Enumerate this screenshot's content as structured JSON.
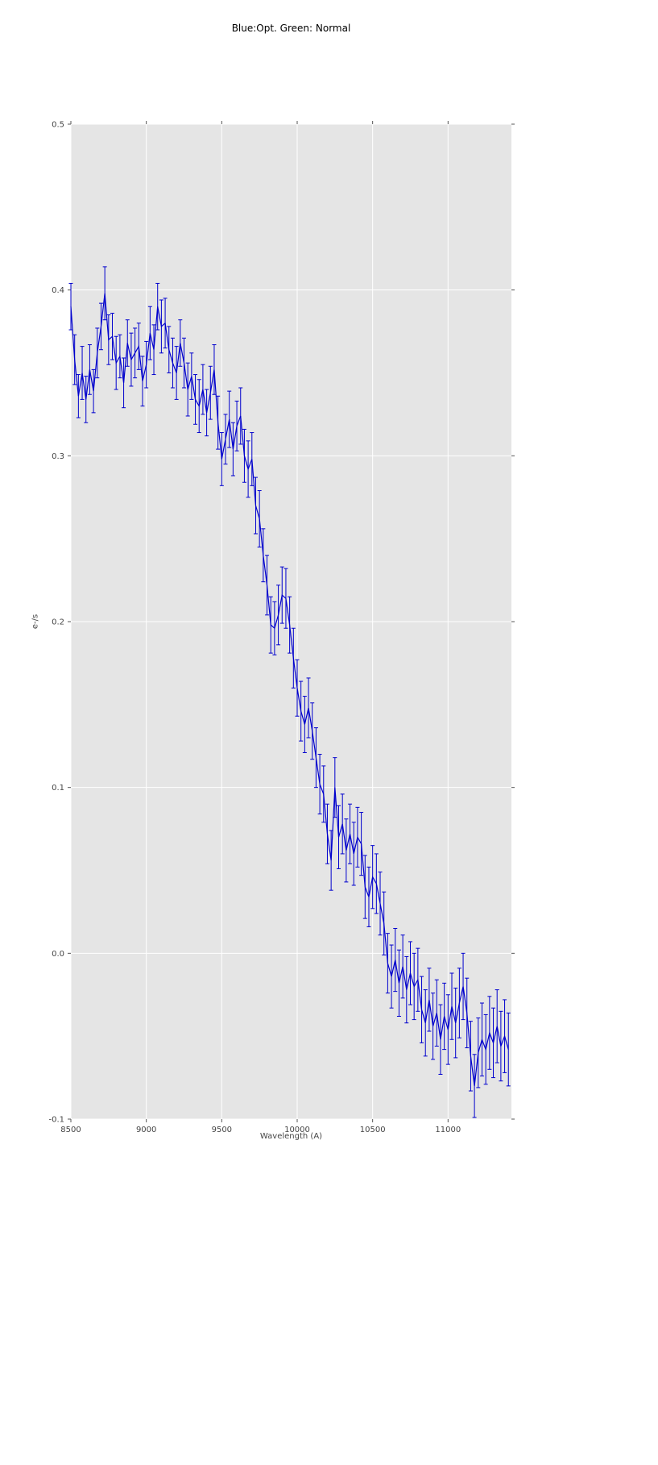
{
  "title": "Blue:Opt. Green: Normal",
  "chart_data": {
    "type": "line",
    "title": "Blue:Opt. Green: Normal",
    "xlabel": "Wavelength (A)",
    "ylabel": "e-/s",
    "xlim": [
      8500,
      11420
    ],
    "ylim": [
      -0.1,
      0.5
    ],
    "xticks": [
      8500,
      9000,
      9500,
      10000,
      10500,
      11000
    ],
    "yticks": [
      -0.1,
      0.0,
      0.1,
      0.2,
      0.3,
      0.4,
      0.5
    ],
    "grid": true,
    "legend": "none",
    "style": {
      "background": "#e5e5e5",
      "grid_color": "#ffffff",
      "line_color": "#0000cd",
      "tick_color": "#555555",
      "error_bars": true
    },
    "x": [
      8500,
      8525,
      8550,
      8575,
      8600,
      8625,
      8650,
      8675,
      8700,
      8725,
      8750,
      8775,
      8800,
      8825,
      8850,
      8875,
      8900,
      8925,
      8950,
      8975,
      9000,
      9025,
      9050,
      9075,
      9100,
      9125,
      9150,
      9175,
      9200,
      9225,
      9250,
      9275,
      9300,
      9325,
      9350,
      9375,
      9400,
      9425,
      9450,
      9475,
      9500,
      9525,
      9550,
      9575,
      9600,
      9625,
      9650,
      9675,
      9700,
      9725,
      9750,
      9775,
      9800,
      9825,
      9850,
      9875,
      9900,
      9925,
      9950,
      9975,
      10000,
      10025,
      10050,
      10075,
      10100,
      10125,
      10150,
      10175,
      10200,
      10225,
      10250,
      10275,
      10300,
      10325,
      10350,
      10375,
      10400,
      10425,
      10450,
      10475,
      10500,
      10525,
      10550,
      10575,
      10600,
      10625,
      10650,
      10675,
      10700,
      10725,
      10750,
      10775,
      10800,
      10825,
      10850,
      10875,
      10900,
      10925,
      10950,
      10975,
      11000,
      11025,
      11050,
      11075,
      11100,
      11125,
      11150,
      11175,
      11200,
      11225,
      11250,
      11275,
      11300,
      11325,
      11350,
      11375,
      11400
    ],
    "y": [
      0.39,
      0.358,
      0.336,
      0.35,
      0.334,
      0.352,
      0.339,
      0.362,
      0.378,
      0.398,
      0.37,
      0.372,
      0.356,
      0.36,
      0.344,
      0.368,
      0.358,
      0.362,
      0.366,
      0.345,
      0.355,
      0.374,
      0.364,
      0.39,
      0.378,
      0.38,
      0.364,
      0.356,
      0.35,
      0.368,
      0.356,
      0.34,
      0.348,
      0.334,
      0.33,
      0.34,
      0.326,
      0.338,
      0.352,
      0.32,
      0.298,
      0.31,
      0.322,
      0.304,
      0.318,
      0.324,
      0.3,
      0.292,
      0.298,
      0.27,
      0.262,
      0.24,
      0.222,
      0.198,
      0.196,
      0.204,
      0.216,
      0.214,
      0.198,
      0.178,
      0.16,
      0.146,
      0.138,
      0.148,
      0.134,
      0.118,
      0.102,
      0.096,
      0.072,
      0.056,
      0.1,
      0.07,
      0.078,
      0.062,
      0.072,
      0.06,
      0.07,
      0.066,
      0.04,
      0.034,
      0.046,
      0.042,
      0.03,
      0.018,
      -0.006,
      -0.014,
      -0.004,
      -0.018,
      -0.008,
      -0.022,
      -0.012,
      -0.02,
      -0.016,
      -0.034,
      -0.042,
      -0.028,
      -0.044,
      -0.036,
      -0.052,
      -0.038,
      -0.046,
      -0.032,
      -0.042,
      -0.03,
      -0.02,
      -0.036,
      -0.062,
      -0.08,
      -0.06,
      -0.052,
      -0.058,
      -0.048,
      -0.054,
      -0.044,
      -0.056,
      -0.05,
      -0.058
    ],
    "yerr": [
      0.014,
      0.015,
      0.013,
      0.016,
      0.014,
      0.015,
      0.013,
      0.015,
      0.014,
      0.016,
      0.015,
      0.014,
      0.016,
      0.013,
      0.015,
      0.014,
      0.016,
      0.015,
      0.014,
      0.015,
      0.014,
      0.016,
      0.015,
      0.014,
      0.016,
      0.015,
      0.014,
      0.015,
      0.016,
      0.014,
      0.015,
      0.016,
      0.014,
      0.015,
      0.016,
      0.015,
      0.014,
      0.016,
      0.015,
      0.016,
      0.016,
      0.015,
      0.017,
      0.016,
      0.015,
      0.017,
      0.016,
      0.017,
      0.016,
      0.017,
      0.017,
      0.016,
      0.018,
      0.017,
      0.016,
      0.018,
      0.017,
      0.018,
      0.017,
      0.018,
      0.017,
      0.018,
      0.017,
      0.018,
      0.017,
      0.018,
      0.018,
      0.017,
      0.018,
      0.018,
      0.018,
      0.019,
      0.018,
      0.019,
      0.018,
      0.019,
      0.018,
      0.019,
      0.019,
      0.018,
      0.019,
      0.018,
      0.019,
      0.019,
      0.018,
      0.019,
      0.019,
      0.02,
      0.019,
      0.02,
      0.019,
      0.02,
      0.019,
      0.02,
      0.02,
      0.019,
      0.02,
      0.02,
      0.021,
      0.02,
      0.021,
      0.02,
      0.021,
      0.021,
      0.02,
      0.021,
      0.021,
      0.019,
      0.021,
      0.022,
      0.021,
      0.022,
      0.021,
      0.022,
      0.021,
      0.022,
      0.022
    ]
  }
}
